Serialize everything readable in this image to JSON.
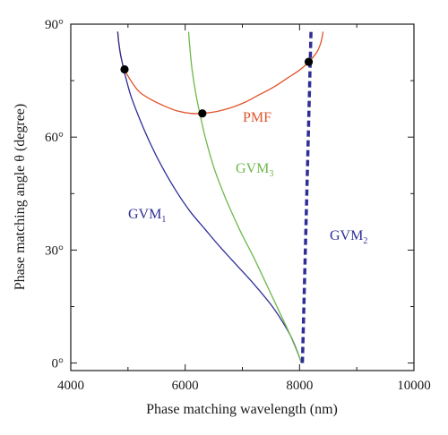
{
  "chart_data": {
    "type": "line",
    "title": "",
    "xlabel": "Phase matching wavelength (nm)",
    "ylabel": "Phase matching angle θ (degree)",
    "xlim": [
      4000,
      10000
    ],
    "ylim": [
      -2,
      90
    ],
    "xticks": [
      4000,
      6000,
      8000,
      10000
    ],
    "xtick_labels": [
      "4000",
      "6000",
      "8000",
      "10000"
    ],
    "yticks": [
      0,
      30,
      60,
      90
    ],
    "ytick_labels": [
      "0°",
      "30°",
      "60°",
      "90°"
    ],
    "grid": false,
    "legend": "none",
    "series": [
      {
        "name": "PMF",
        "label_main": "PMF",
        "label_sub": "",
        "color": "#e0532a",
        "style": "solid",
        "x": [
          4820,
          4840,
          4880,
          4940,
          5050,
          5200,
          5400,
          5600,
          5850,
          6100,
          6300,
          6550,
          6800,
          7050,
          7300,
          7550,
          7800,
          8000,
          8150,
          8300,
          8370,
          8400,
          8410
        ],
        "y": [
          88,
          85,
          81,
          78,
          75,
          72,
          70,
          68.5,
          67,
          66.3,
          66.3,
          66.8,
          67.8,
          69.3,
          71.3,
          73.3,
          75.8,
          77.8,
          79.8,
          82.5,
          85,
          87,
          88
        ]
      },
      {
        "name": "GVM1",
        "label_main": "GVM",
        "label_sub": "1",
        "color": "#2e2e96",
        "style": "solid",
        "x": [
          4820,
          4840,
          4870,
          4950,
          5050,
          5200,
          5400,
          5600,
          5850,
          6100,
          6350,
          6600,
          6900,
          7200,
          7500,
          7700,
          7850,
          7950,
          8010,
          8030
        ],
        "y": [
          88,
          85,
          82,
          76.5,
          71,
          65,
          58,
          52,
          45.5,
          40,
          35.5,
          31,
          26,
          21,
          15.5,
          11,
          7,
          3.5,
          1,
          0
        ]
      },
      {
        "name": "GVM3",
        "label_main": "GVM",
        "label_sub": "3",
        "color": "#6eb84a",
        "style": "solid",
        "x": [
          6060,
          6080,
          6120,
          6180,
          6260,
          6350,
          6500,
          6700,
          6950,
          7200,
          7450,
          7650,
          7820,
          7930,
          8000,
          8020,
          8030
        ],
        "y": [
          88,
          84,
          78,
          72,
          66,
          60,
          52,
          44,
          35.5,
          28,
          20,
          13.5,
          8,
          4,
          1.5,
          0.5,
          0
        ]
      },
      {
        "name": "GVM2",
        "label_main": "GVM",
        "label_sub": "2",
        "color": "#2e2e96",
        "style": "dashed",
        "x": [
          8050,
          8120,
          8200
        ],
        "y": [
          0,
          45,
          88
        ]
      }
    ],
    "points": [
      {
        "x": 4940,
        "y": 78
      },
      {
        "x": 6300,
        "y": 66.3
      },
      {
        "x": 8160,
        "y": 80
      }
    ]
  }
}
